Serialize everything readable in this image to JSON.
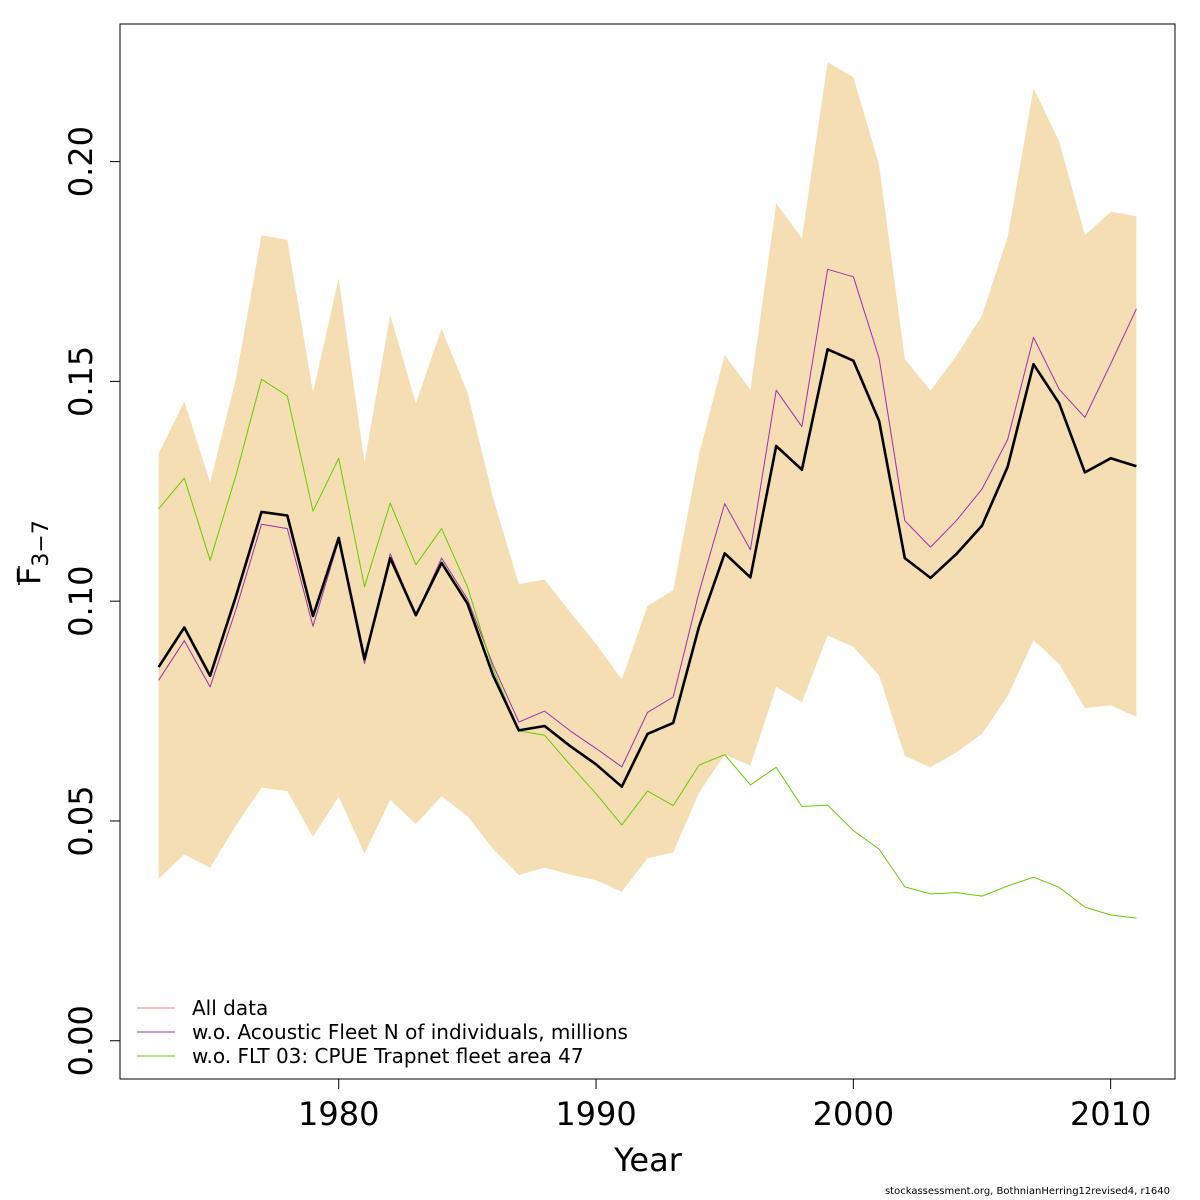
{
  "chart_data": {
    "type": "line",
    "xlabel": "Year",
    "ylabel_main": "F",
    "ylabel_sub": "3−7",
    "xlim": [
      1971.5,
      2012.5
    ],
    "ylim": [
      -0.0087,
      0.2313
    ],
    "x_ticks": [
      1980,
      1990,
      2000,
      2010
    ],
    "y_ticks": [
      0.0,
      0.05,
      0.1,
      0.15,
      0.2
    ],
    "y_tick_labels": [
      "0.00",
      "0.05",
      "0.10",
      "0.15",
      "0.20"
    ],
    "x_tick_labels": [
      "1980",
      "1990",
      "2000",
      "2010"
    ],
    "years": [
      1973,
      1974,
      1975,
      1976,
      1977,
      1978,
      1979,
      1980,
      1981,
      1982,
      1983,
      1984,
      1985,
      1986,
      1987,
      1988,
      1989,
      1990,
      1991,
      1992,
      1993,
      1994,
      1995,
      1996,
      1997,
      1998,
      1999,
      2000,
      2001,
      2002,
      2003,
      2004,
      2005,
      2006,
      2007,
      2008,
      2009,
      2010,
      2011
    ],
    "confidence_band": {
      "color": "#f5deb3",
      "upper": [
        0.1335,
        0.1455,
        0.127,
        0.1505,
        0.1832,
        0.1822,
        0.1475,
        0.1735,
        0.1315,
        0.1652,
        0.145,
        0.162,
        0.1475,
        0.1235,
        0.1039,
        0.1049,
        0.0975,
        0.0903,
        0.0822,
        0.0989,
        0.1025,
        0.1334,
        0.156,
        0.1481,
        0.1905,
        0.1826,
        0.2226,
        0.2192,
        0.1992,
        0.1551,
        0.1479,
        0.1558,
        0.165,
        0.1829,
        0.2167,
        0.2046,
        0.1832,
        0.1886,
        0.1876
      ],
      "lower": [
        0.0368,
        0.0424,
        0.0394,
        0.0489,
        0.0576,
        0.0568,
        0.0464,
        0.0555,
        0.0426,
        0.0548,
        0.0493,
        0.0556,
        0.0511,
        0.0436,
        0.0377,
        0.0394,
        0.0378,
        0.0365,
        0.0339,
        0.0415,
        0.0428,
        0.0564,
        0.0651,
        0.0626,
        0.0805,
        0.077,
        0.0922,
        0.0896,
        0.0831,
        0.0648,
        0.0622,
        0.0656,
        0.0698,
        0.0784,
        0.0911,
        0.0857,
        0.0757,
        0.0763,
        0.0737
      ]
    },
    "series": [
      {
        "name": "All data",
        "color": "#000000",
        "width": 2.6,
        "legend_color": "#f08080",
        "values": [
          0.085,
          0.094,
          0.083,
          0.101,
          0.1203,
          0.1195,
          0.0966,
          0.1144,
          0.0868,
          0.1098,
          0.0968,
          0.1087,
          0.0995,
          0.0831,
          0.0706,
          0.0716,
          0.067,
          0.0629,
          0.0578,
          0.0698,
          0.0723,
          0.0942,
          0.1109,
          0.1054,
          0.1353,
          0.1299,
          0.1573,
          0.1547,
          0.141,
          0.1098,
          0.1053,
          0.1107,
          0.1172,
          0.1306,
          0.1539,
          0.145,
          0.1293,
          0.1325,
          0.1307
        ]
      },
      {
        "name": "w.o. Acoustic Fleet  N of individuals, millions",
        "color": "#9b30b0",
        "width": 1.0,
        "legend_color": "#9b30b0",
        "values": [
          0.082,
          0.091,
          0.0805,
          0.098,
          0.1175,
          0.1165,
          0.0943,
          0.1138,
          0.0858,
          0.1108,
          0.0968,
          0.1098,
          0.1005,
          0.0855,
          0.0725,
          0.075,
          0.0705,
          0.0665,
          0.0623,
          0.0747,
          0.0782,
          0.102,
          0.1222,
          0.1117,
          0.148,
          0.1397,
          0.1755,
          0.1738,
          0.1553,
          0.1183,
          0.1123,
          0.1183,
          0.1255,
          0.1368,
          0.16,
          0.1482,
          0.1418,
          0.154,
          0.1665
        ]
      },
      {
        "name": "w.o. FLT 03: CPUE Trapnet fleet area 47",
        "color": "#66cc00",
        "width": 1.0,
        "legend_color": "#66cc00",
        "values": [
          0.121,
          0.128,
          0.1093,
          0.1285,
          0.1505,
          0.1467,
          0.1205,
          0.1325,
          0.1033,
          0.1223,
          0.1083,
          0.1165,
          0.1033,
          0.0845,
          0.0705,
          0.0695,
          0.0627,
          0.0562,
          0.0491,
          0.0568,
          0.0535,
          0.0627,
          0.0651,
          0.0582,
          0.0622,
          0.0533,
          0.0536,
          0.0478,
          0.0436,
          0.035,
          0.0334,
          0.0337,
          0.0329,
          0.0352,
          0.0372,
          0.0349,
          0.0304,
          0.0286,
          0.0279
        ]
      }
    ],
    "legend_position": "bottom-left"
  },
  "credit": "stockassessment.org, BothnianHerring12revised4, r1640"
}
